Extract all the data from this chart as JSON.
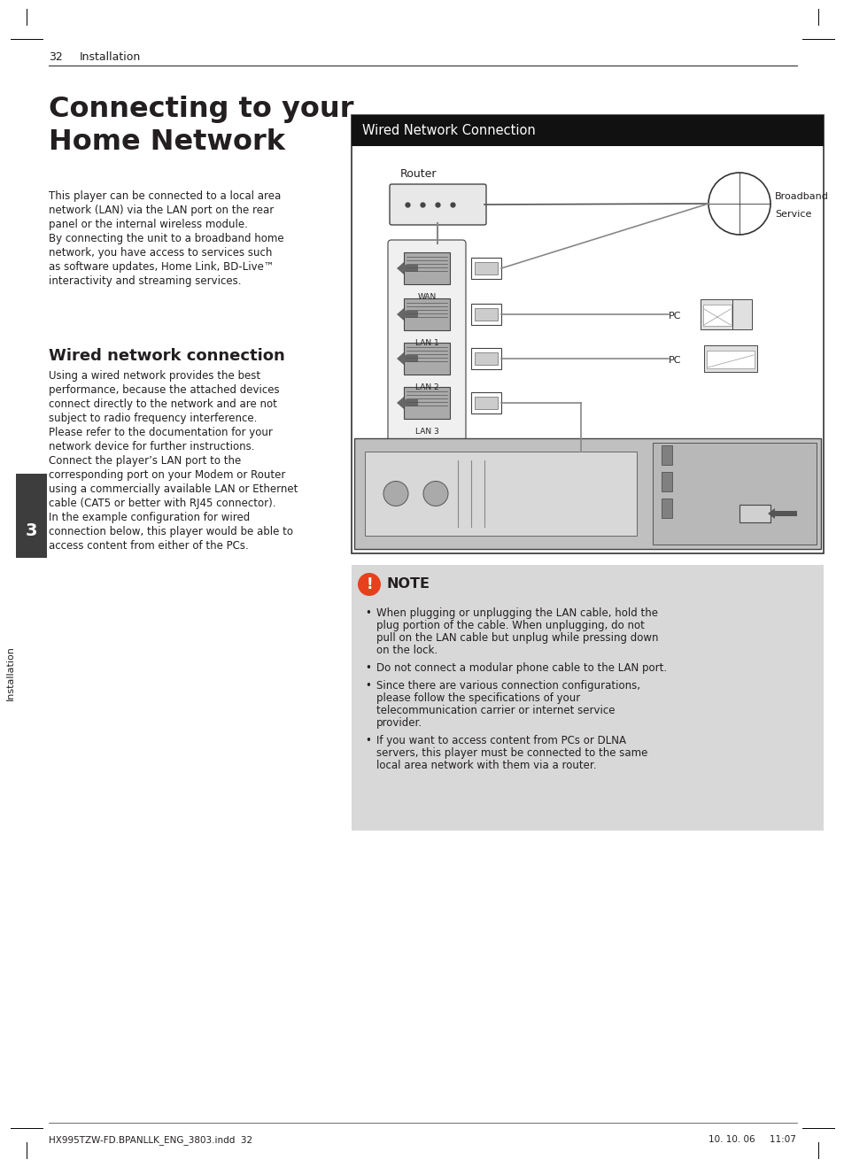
{
  "page_number": "32",
  "header_text": "Installation",
  "footer_left": "HX995TZW-FD.BPANLLK_ENG_3803.indd  32",
  "footer_right": "10. 10. 06     11:07",
  "title_line1": "Connecting to your",
  "title_line2": "Home Network",
  "intro_text": "This player can be connected to a local area\nnetwork (LAN) via the LAN port on the rear\npanel or the internal wireless module.\nBy connecting the unit to a broadband home\nnetwork, you have access to services such\nas software updates, Home Link, BD-Live™\ninteractivity and streaming services.",
  "section_title": "Wired network connection",
  "section_text": "Using a wired network provides the best\nperformance, because the attached devices\nconnect directly to the network and are not\nsubject to radio frequency interference.\nPlease refer to the documentation for your\nnetwork device for further instructions.\nConnect the player’s LAN port to the\ncorresponding port on your Modem or Router\nusing a commercially available LAN or Ethernet\ncable (CAT5 or better with RJ45 connector).\nIn the example configuration for wired\nconnection below, this player would be able to\naccess content from either of the PCs.",
  "diagram_title": "Wired Network Connection",
  "sidebar_number": "3",
  "sidebar_text": "Installation",
  "note_title": "NOTE",
  "note_bullets": [
    "When plugging or unplugging the LAN cable, hold the plug portion of the cable. When unplugging, do not pull on the LAN cable but unplug while pressing down on the lock.",
    "Do not connect a modular phone cable to the LAN port.",
    "Since there are various connection configurations, please follow the specifications of your telecommunication carrier or internet service provider.",
    "If you want to access content from PCs or DLNA servers, this player must be connected to the same local area network with them via a router."
  ],
  "bg_color": "#ffffff",
  "text_color": "#231f20",
  "diagram_title_bg": "#111111",
  "diagram_title_fg": "#ffffff",
  "diagram_bg": "#ffffff",
  "diagram_border": "#333333",
  "note_bg": "#d8d8d8",
  "note_icon_color": "#e8401c",
  "sidebar_bg": "#3d3d3d",
  "gray_port": "#888888",
  "light_gray": "#cccccc"
}
